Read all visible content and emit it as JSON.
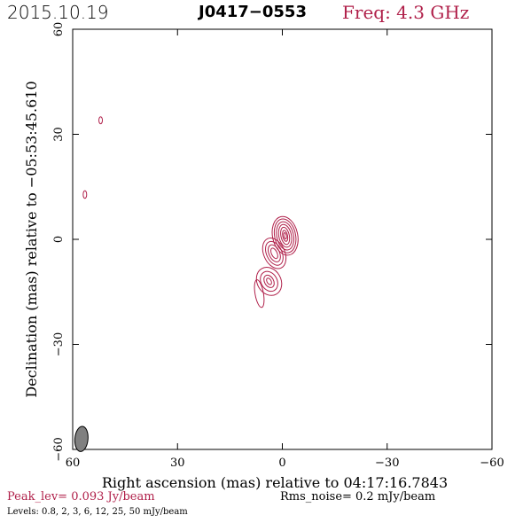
{
  "header": {
    "date": "2015.10.19",
    "source": "J0417−0553",
    "frequency": "Freq: 4.3 GHz"
  },
  "colors": {
    "contour": "#b0204a",
    "frame": "#000000",
    "beam_fill": "#808080"
  },
  "chart_data": {
    "type": "contour",
    "xlabel": "Right ascension (mas) relative to 04:17:16.7843",
    "ylabel": "Declination (mas) relative to −05:53:45.610",
    "xlim": [
      60,
      -60
    ],
    "ylim": [
      -60,
      60
    ],
    "xticks": [
      60,
      30,
      0,
      -30,
      -60
    ],
    "yticks": [
      -60,
      -30,
      0,
      30,
      60
    ],
    "xtick_labels": [
      "60",
      "30",
      "0",
      "−30",
      "−60"
    ],
    "ytick_labels": [
      "−60",
      "−30",
      "0",
      "30",
      "60"
    ],
    "peak_level": "Peak_lev=  0.093 Jy/beam",
    "rms_noise": "Rms_noise=   0.2 mJy/beam",
    "levels_text": "Levels: 0.8,    2,    3,    6,   12,   25,   50 mJy/beam",
    "levels_mJy": [
      0.8,
      2,
      3,
      6,
      12,
      25,
      50
    ],
    "beam": {
      "x": 57.5,
      "y": -57.0,
      "major_mas": 4.0,
      "minor_mas": 2.2,
      "pa_deg": 5
    },
    "components": [
      {
        "name": "core",
        "x": -0.8,
        "y": 1.0,
        "contours": [
          {
            "rx": 3.6,
            "ry": 5.6,
            "rot": -12
          },
          {
            "rx": 3.0,
            "ry": 4.9,
            "rot": -12
          },
          {
            "rx": 2.4,
            "ry": 4.1,
            "rot": -12
          },
          {
            "rx": 1.8,
            "ry": 3.3,
            "rot": -12
          },
          {
            "rx": 1.2,
            "ry": 2.5,
            "rot": -12
          },
          {
            "rx": 0.7,
            "ry": 1.6,
            "rot": -12
          },
          {
            "rx": 0.35,
            "ry": 0.9,
            "rot": -12
          }
        ]
      },
      {
        "name": "jet-knot-1",
        "x": 2.3,
        "y": -4.0,
        "contours": [
          {
            "rx": 3.0,
            "ry": 4.6,
            "rot": -25
          },
          {
            "rx": 2.2,
            "ry": 3.6,
            "rot": -25
          },
          {
            "rx": 1.5,
            "ry": 2.6,
            "rot": -25
          },
          {
            "rx": 0.8,
            "ry": 1.6,
            "rot": -25
          }
        ]
      },
      {
        "name": "jet-knot-2",
        "x": 3.8,
        "y": -12.0,
        "contours": [
          {
            "rx": 3.4,
            "ry": 4.2,
            "rot": -30
          },
          {
            "rx": 2.3,
            "ry": 3.0,
            "rot": -30
          },
          {
            "rx": 1.3,
            "ry": 1.9,
            "rot": -30
          },
          {
            "rx": 0.6,
            "ry": 1.0,
            "rot": -30
          }
        ]
      },
      {
        "name": "jet-tail",
        "x": 6.6,
        "y": -15.5,
        "contours": [
          {
            "rx": 1.2,
            "ry": 4.0,
            "rot": -10
          }
        ]
      },
      {
        "name": "noise-1",
        "x": 56.5,
        "y": 12.8,
        "contours": [
          {
            "rx": 0.5,
            "ry": 1.1,
            "rot": 0
          }
        ]
      },
      {
        "name": "noise-2",
        "x": 52.0,
        "y": 34.0,
        "contours": [
          {
            "rx": 0.5,
            "ry": 1.0,
            "rot": 0
          }
        ]
      }
    ]
  }
}
